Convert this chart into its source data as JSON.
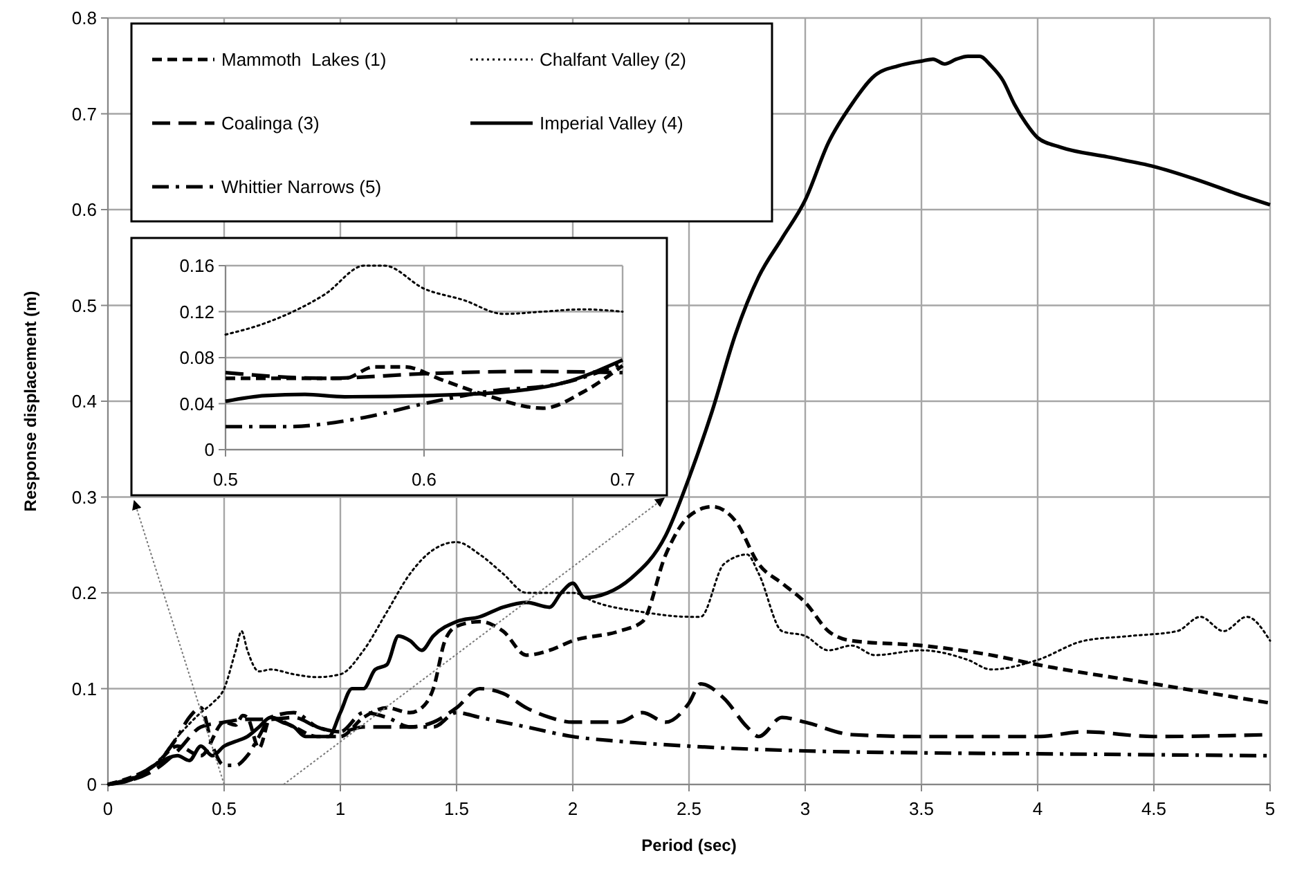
{
  "chart_data": [
    {
      "type": "line",
      "xlabel": "Period (sec)",
      "ylabel": "Response displacement (m)",
      "xlim": [
        0,
        5
      ],
      "xticks": [
        0,
        0.5,
        1,
        1.5,
        2,
        2.5,
        3,
        3.5,
        4,
        4.5,
        5
      ],
      "ylim": [
        0,
        0.8
      ],
      "yticks": [
        0,
        0.1,
        0.2,
        0.3,
        0.4,
        0.5,
        0.6,
        0.7,
        0.8
      ],
      "grid": true,
      "legend": "top left",
      "series": [
        {
          "name": "Mammoth  Lakes (1)",
          "color": "#000000",
          "line_style": "dashed",
          "x": [
            0,
            0.2,
            0.3,
            0.4,
            0.5,
            0.55,
            0.58,
            0.6,
            0.65,
            0.7,
            0.8,
            0.9,
            1.0,
            1.1,
            1.2,
            1.3,
            1.35,
            1.4,
            1.45,
            1.5,
            1.6,
            1.7,
            1.8,
            1.9,
            2.0,
            2.2,
            2.3,
            2.4,
            2.5,
            2.6,
            2.7,
            2.8,
            2.9,
            3.0,
            3.1,
            3.2,
            3.5,
            3.8,
            4.0,
            4.5,
            5
          ],
          "values": [
            0,
            0.02,
            0.04,
            0.03,
            0.065,
            0.062,
            0.072,
            0.07,
            0.038,
            0.07,
            0.06,
            0.05,
            0.05,
            0.07,
            0.08,
            0.075,
            0.08,
            0.1,
            0.15,
            0.165,
            0.17,
            0.16,
            0.135,
            0.14,
            0.15,
            0.16,
            0.17,
            0.24,
            0.28,
            0.29,
            0.275,
            0.23,
            0.21,
            0.19,
            0.16,
            0.15,
            0.145,
            0.135,
            0.125,
            0.105,
            0.085
          ]
        },
        {
          "name": "Chalfant Valley (2)",
          "color": "#000000",
          "line_style": "dotted",
          "x": [
            0,
            0.2,
            0.3,
            0.4,
            0.45,
            0.5,
            0.55,
            0.575,
            0.6,
            0.65,
            0.7,
            0.8,
            0.9,
            1.0,
            1.1,
            1.2,
            1.3,
            1.4,
            1.5,
            1.6,
            1.7,
            1.8,
            2.0,
            2.1,
            2.3,
            2.5,
            2.55,
            2.65,
            2.75,
            2.8,
            2.9,
            3.0,
            3.1,
            3.2,
            3.3,
            3.5,
            3.7,
            3.8,
            4.0,
            4.2,
            4.4,
            4.6,
            4.7,
            4.8,
            4.9,
            5
          ],
          "values": [
            0,
            0.02,
            0.05,
            0.075,
            0.085,
            0.1,
            0.14,
            0.16,
            0.14,
            0.118,
            0.12,
            0.115,
            0.112,
            0.115,
            0.14,
            0.18,
            0.22,
            0.245,
            0.253,
            0.24,
            0.22,
            0.2,
            0.2,
            0.19,
            0.18,
            0.175,
            0.175,
            0.23,
            0.24,
            0.22,
            0.16,
            0.155,
            0.14,
            0.145,
            0.135,
            0.14,
            0.13,
            0.12,
            0.13,
            0.15,
            0.155,
            0.16,
            0.175,
            0.16,
            0.175,
            0.15
          ]
        },
        {
          "name": "Coalinga (3)",
          "color": "#000000",
          "line_style": "longdash",
          "x": [
            0,
            0.2,
            0.3,
            0.4,
            0.5,
            0.6,
            0.7,
            0.8,
            0.9,
            1.0,
            1.1,
            1.2,
            1.3,
            1.4,
            1.5,
            1.6,
            1.7,
            1.8,
            1.9,
            2.0,
            2.2,
            2.3,
            2.4,
            2.5,
            2.55,
            2.65,
            2.75,
            2.8,
            2.9,
            3.0,
            3.2,
            3.5,
            4.0,
            4.2,
            4.5,
            5
          ],
          "values": [
            0,
            0.015,
            0.035,
            0.06,
            0.065,
            0.068,
            0.068,
            0.07,
            0.06,
            0.055,
            0.06,
            0.06,
            0.06,
            0.065,
            0.08,
            0.1,
            0.095,
            0.08,
            0.07,
            0.065,
            0.065,
            0.075,
            0.065,
            0.085,
            0.105,
            0.09,
            0.06,
            0.05,
            0.07,
            0.065,
            0.052,
            0.05,
            0.05,
            0.055,
            0.05,
            0.052
          ]
        },
        {
          "name": "Imperial Valley (4)",
          "color": "#000000",
          "line_style": "solid",
          "x": [
            0,
            0.1,
            0.2,
            0.3,
            0.35,
            0.4,
            0.45,
            0.5,
            0.55,
            0.6,
            0.65,
            0.7,
            0.75,
            0.8,
            0.85,
            0.9,
            0.95,
            1.0,
            1.05,
            1.1,
            1.15,
            1.2,
            1.25,
            1.3,
            1.35,
            1.4,
            1.5,
            1.6,
            1.7,
            1.8,
            1.9,
            1.95,
            2.0,
            2.05,
            2.15,
            2.25,
            2.4,
            2.5,
            2.6,
            2.7,
            2.8,
            2.9,
            3.0,
            3.1,
            3.2,
            3.3,
            3.4,
            3.5,
            3.55,
            3.6,
            3.65,
            3.7,
            3.75,
            3.8,
            3.85,
            3.9,
            3.95,
            4.0,
            4.1,
            4.3,
            4.5,
            4.7,
            4.85,
            5
          ],
          "values": [
            0,
            0.005,
            0.02,
            0.03,
            0.025,
            0.04,
            0.03,
            0.04,
            0.045,
            0.05,
            0.06,
            0.07,
            0.065,
            0.06,
            0.05,
            0.05,
            0.05,
            0.075,
            0.1,
            0.1,
            0.12,
            0.125,
            0.155,
            0.15,
            0.14,
            0.155,
            0.17,
            0.175,
            0.185,
            0.19,
            0.185,
            0.2,
            0.21,
            0.195,
            0.2,
            0.215,
            0.26,
            0.32,
            0.39,
            0.47,
            0.53,
            0.57,
            0.61,
            0.67,
            0.71,
            0.74,
            0.75,
            0.755,
            0.757,
            0.752,
            0.757,
            0.76,
            0.76,
            0.75,
            0.735,
            0.71,
            0.69,
            0.675,
            0.665,
            0.655,
            0.645,
            0.63,
            0.617,
            0.605
          ]
        },
        {
          "name": "Whittier Narrows (5)",
          "color": "#000000",
          "line_style": "dashdot",
          "x": [
            0,
            0.2,
            0.3,
            0.35,
            0.4,
            0.45,
            0.5,
            0.55,
            0.6,
            0.65,
            0.7,
            0.8,
            0.9,
            1.0,
            1.1,
            1.2,
            1.3,
            1.4,
            1.5,
            1.6,
            1.8,
            2.0,
            2.2,
            2.5,
            3.0,
            3.5,
            4.0,
            5
          ],
          "values": [
            0,
            0.02,
            0.05,
            0.07,
            0.08,
            0.04,
            0.02,
            0.02,
            0.03,
            0.05,
            0.07,
            0.075,
            0.06,
            0.055,
            0.075,
            0.07,
            0.06,
            0.06,
            0.075,
            0.07,
            0.06,
            0.05,
            0.045,
            0.04,
            0.035,
            0.033,
            0.032,
            0.03
          ]
        }
      ]
    },
    {
      "type": "line",
      "xlim": [
        0.5,
        0.7
      ],
      "xticks": [
        0.5,
        0.6,
        0.7
      ],
      "ylim": [
        0,
        0.16
      ],
      "yticks": [
        0,
        0.04,
        0.08,
        0.12,
        0.16
      ],
      "grid": true,
      "series": [
        {
          "color": "#000000",
          "line_style": "dashed",
          "x": [
            0.5,
            0.53,
            0.56,
            0.575,
            0.59,
            0.61,
            0.63,
            0.66,
            0.68,
            0.7
          ],
          "values": [
            0.062,
            0.062,
            0.062,
            0.072,
            0.072,
            0.06,
            0.048,
            0.036,
            0.05,
            0.073
          ]
        },
        {
          "color": "#000000",
          "line_style": "dotted",
          "x": [
            0.5,
            0.52,
            0.55,
            0.57,
            0.58,
            0.6,
            0.62,
            0.64,
            0.66,
            0.68,
            0.7
          ],
          "values": [
            0.1,
            0.11,
            0.135,
            0.16,
            0.16,
            0.14,
            0.13,
            0.118,
            0.12,
            0.122,
            0.12
          ]
        },
        {
          "color": "#000000",
          "line_style": "longdash",
          "x": [
            0.5,
            0.55,
            0.6,
            0.65,
            0.7
          ],
          "values": [
            0.067,
            0.062,
            0.066,
            0.068,
            0.067
          ]
        },
        {
          "color": "#000000",
          "line_style": "solid",
          "x": [
            0.5,
            0.52,
            0.54,
            0.56,
            0.6,
            0.64,
            0.67,
            0.7
          ],
          "values": [
            0.042,
            0.047,
            0.048,
            0.046,
            0.047,
            0.05,
            0.058,
            0.078
          ]
        },
        {
          "color": "#000000",
          "line_style": "dashdot",
          "x": [
            0.5,
            0.53,
            0.57,
            0.6,
            0.63,
            0.67,
            0.7
          ],
          "values": [
            0.02,
            0.02,
            0.028,
            0.04,
            0.05,
            0.058,
            0.075
          ]
        }
      ]
    }
  ]
}
